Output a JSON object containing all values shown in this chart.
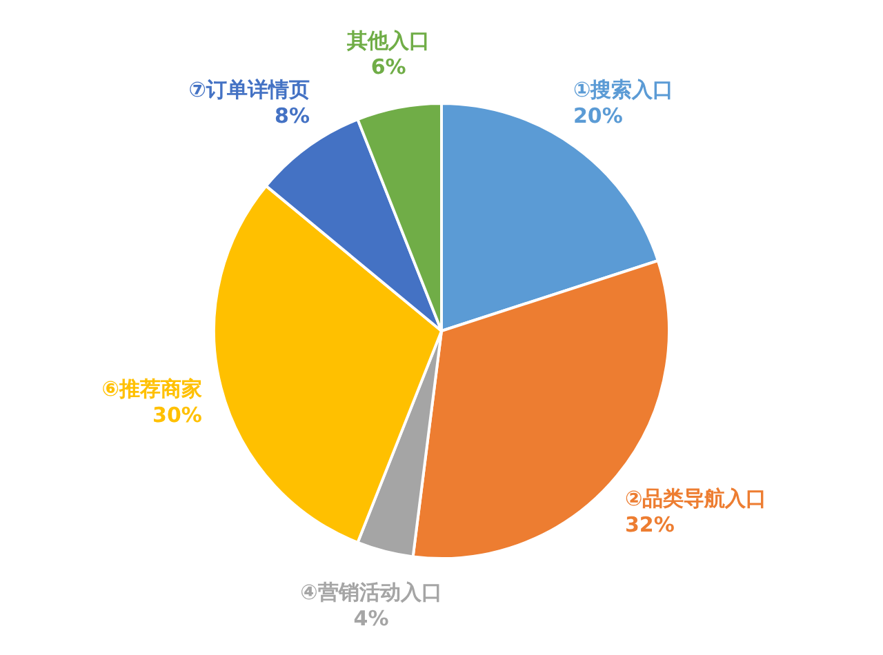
{
  "chart_data": {
    "type": "pie",
    "categories": [
      "①搜索入口",
      "②品类导航入口",
      "④营销活动入口",
      "⑥推荐商家",
      "⑦订单详情页",
      "其他入口"
    ],
    "values": [
      20,
      32,
      4,
      30,
      8,
      6
    ],
    "colors": [
      "#5b9bd5",
      "#ed7d31",
      "#a5a5a5",
      "#ffc000",
      "#4472c4",
      "#70ad47"
    ],
    "value_labels": [
      "20%",
      "32%",
      "4%",
      "30%",
      "8%",
      "6%"
    ]
  }
}
